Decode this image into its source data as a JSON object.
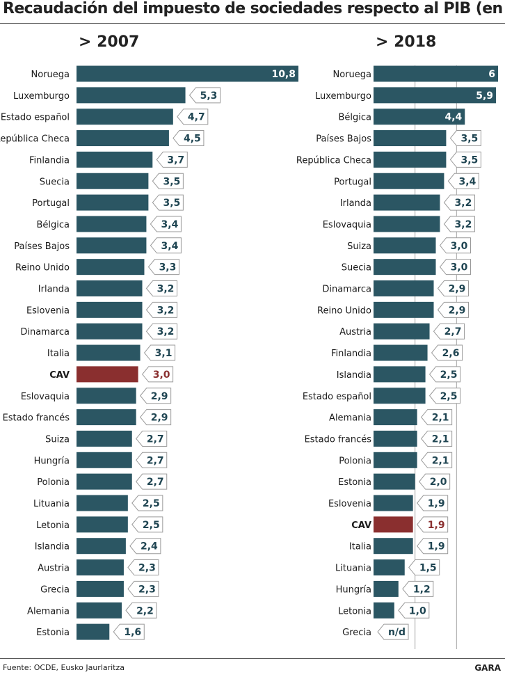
{
  "title": "Recaudación del impuesto de sociedades respecto al PIB (en %)",
  "footer": {
    "source": "Fuente: OCDE, Eusko Jaurlaritza",
    "brand": "GARA"
  },
  "colors": {
    "bar": "#2b5663",
    "highlight": "#8a2f2f",
    "value_text": "#1f4552",
    "highlight_text": "#8a2f2f"
  },
  "chart_data": [
    {
      "type": "bar",
      "orientation": "horizontal",
      "title": "> 2007",
      "xlim": [
        0,
        10.8
      ],
      "highlight": "CAV",
      "categories": [
        "Noruega",
        "Luxemburgo",
        "Estado español",
        "República Checa",
        "Finlandia",
        "Suecia",
        "Portugal",
        "Bélgica",
        "Países Bajos",
        "Reino Unido",
        "Irlanda",
        "Eslovenia",
        "Dinamarca",
        "Italia",
        "CAV",
        "Eslovaquia",
        "Estado francés",
        "Suiza",
        "Hungría",
        "Polonia",
        "Lituania",
        "Letonia",
        "Islandia",
        "Austria",
        "Grecia",
        "Alemania",
        "Estonia"
      ],
      "values": [
        10.8,
        5.3,
        4.7,
        4.5,
        3.7,
        3.5,
        3.5,
        3.4,
        3.4,
        3.3,
        3.2,
        3.2,
        3.2,
        3.1,
        3.0,
        2.9,
        2.9,
        2.7,
        2.7,
        2.7,
        2.5,
        2.5,
        2.4,
        2.3,
        2.3,
        2.2,
        1.6
      ],
      "labels": [
        "10,8",
        "5,3",
        "4,7",
        "4,5",
        "3,7",
        "3,5",
        "3,5",
        "3,4",
        "3,4",
        "3,3",
        "3,2",
        "3,2",
        "3,2",
        "3,1",
        "3,0",
        "2,9",
        "2,9",
        "2,7",
        "2,7",
        "2,7",
        "2,5",
        "2,5",
        "2,4",
        "2,3",
        "2,3",
        "2,2",
        "1,6"
      ]
    },
    {
      "type": "bar",
      "orientation": "horizontal",
      "title": "> 2018",
      "xlim": [
        0,
        6
      ],
      "gridlines": [
        2,
        4
      ],
      "highlight": "CAV",
      "categories": [
        "Noruega",
        "Luxemburgo",
        "Bélgica",
        "Países Bajos",
        "República Checa",
        "Portugal",
        "Irlanda",
        "Eslovaquia",
        "Suiza",
        "Suecia",
        "Dinamarca",
        "Reino Unido",
        "Austria",
        "Finlandia",
        "Islandia",
        "Estado español",
        "Alemania",
        "Estado francés",
        "Polonia",
        "Estonia",
        "Eslovenia",
        "CAV",
        "Italia",
        "Lituania",
        "Hungría",
        "Letonia",
        "Grecia"
      ],
      "values": [
        6,
        5.9,
        4.4,
        3.5,
        3.5,
        3.4,
        3.2,
        3.2,
        3.0,
        3.0,
        2.9,
        2.9,
        2.7,
        2.6,
        2.5,
        2.5,
        2.1,
        2.1,
        2.1,
        2.0,
        1.9,
        1.9,
        1.9,
        1.5,
        1.2,
        1.0,
        null
      ],
      "labels": [
        "6",
        "5,9",
        "4,4",
        "3,5",
        "3,5",
        "3,4",
        "3,2",
        "3,2",
        "3,0",
        "3,0",
        "2,9",
        "2,9",
        "2,7",
        "2,6",
        "2,5",
        "2,5",
        "2,1",
        "2,1",
        "2,1",
        "2,0",
        "1,9",
        "1,9",
        "1,9",
        "1,5",
        "1,2",
        "1,0",
        "n/d"
      ]
    }
  ]
}
